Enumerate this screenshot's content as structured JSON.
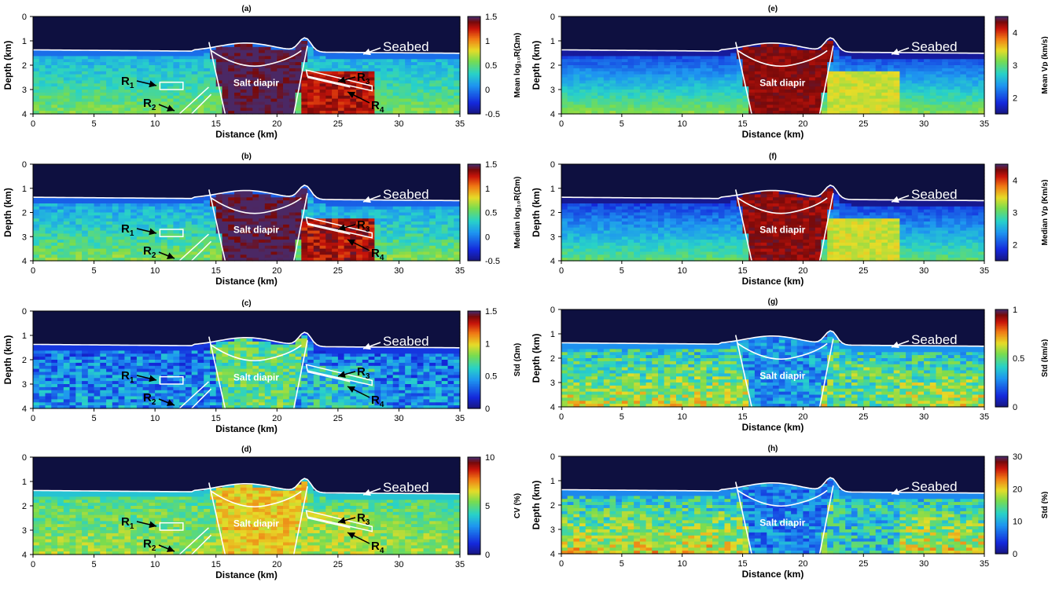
{
  "chart_data": [
    {
      "panel": "a",
      "type": "heatmap",
      "title": "(a)",
      "xlabel": "Distance (km)",
      "ylabel": "Depth (km)",
      "xlim": [
        0,
        35
      ],
      "ylim": [
        4,
        0
      ],
      "xticks": [
        "0",
        "5",
        "10",
        "15",
        "20",
        "25",
        "30",
        "35"
      ],
      "yticks": [
        "0",
        "1",
        "2",
        "3",
        "4"
      ],
      "colorbar": {
        "label": "Mean log₁₀R(Ωm)",
        "min": -0.5,
        "max": 1.5,
        "ticks": [
          "1.5",
          "1",
          "0.5",
          "0",
          "-0.5"
        ]
      },
      "annotations": {
        "seabed": "Seabed",
        "salt": "Salt diapir",
        "reservoirs": true
      },
      "field": {
        "base": 0.15,
        "deepGain": 0.45,
        "saltValue": 1.5,
        "flankValue": 1.3,
        "noise": 0.25
      }
    },
    {
      "panel": "b",
      "type": "heatmap",
      "title": "(b)",
      "xlabel": "Distance (km)",
      "ylabel": "Depth (km)",
      "xlim": [
        0,
        35
      ],
      "ylim": [
        4,
        0
      ],
      "xticks": [
        "0",
        "5",
        "10",
        "15",
        "20",
        "25",
        "30",
        "35"
      ],
      "yticks": [
        "0",
        "1",
        "2",
        "3",
        "4"
      ],
      "colorbar": {
        "label": "Median log₁₀R(Ωm)",
        "min": -0.5,
        "max": 1.5,
        "ticks": [
          "1.5",
          "1",
          "0.5",
          "0",
          "-0.5"
        ]
      },
      "annotations": {
        "seabed": "Seabed",
        "salt": "Salt diapir",
        "reservoirs": true
      },
      "field": {
        "base": 0.1,
        "deepGain": 0.5,
        "saltValue": 1.5,
        "flankValue": 1.3,
        "noise": 0.3
      }
    },
    {
      "panel": "c",
      "type": "heatmap",
      "title": "(c)",
      "xlabel": "Distance (km)",
      "ylabel": "Depth (km)",
      "xlim": [
        0,
        35
      ],
      "ylim": [
        4,
        0
      ],
      "xticks": [
        "0",
        "5",
        "10",
        "15",
        "20",
        "25",
        "30",
        "35"
      ],
      "yticks": [
        "0",
        "1",
        "2",
        "3",
        "4"
      ],
      "colorbar": {
        "label": "Std (Ωm)",
        "min": 0,
        "max": 1.5,
        "ticks": [
          "1.5",
          "1",
          "0.5",
          "0"
        ]
      },
      "annotations": {
        "seabed": "Seabed",
        "salt": "Salt diapir",
        "reservoirs": true
      },
      "field": {
        "base": 0.35,
        "deepGain": 0.1,
        "saltValue": 0.75,
        "flankValue": 0.6,
        "noise": 0.45
      }
    },
    {
      "panel": "d",
      "type": "heatmap",
      "title": "(d)",
      "xlabel": "Distance (km)",
      "ylabel": "",
      "xlim": [
        0,
        35
      ],
      "ylim": [
        4,
        0
      ],
      "xticks": [
        "0",
        "5",
        "10",
        "15",
        "20",
        "25",
        "30",
        "35"
      ],
      "yticks": [
        "0",
        "1",
        "2",
        "3",
        "4"
      ],
      "colorbar": {
        "label": "CV (%)",
        "min": 0,
        "max": 10,
        "ticks": [
          "10",
          "5",
          "0"
        ]
      },
      "annotations": {
        "seabed": "Seabed",
        "salt": "Salt diapir",
        "reservoirs": true
      },
      "field": {
        "base": 4.8,
        "deepGain": 1.0,
        "saltValue": 6.8,
        "flankValue": 6.0,
        "noise": 1.8
      }
    },
    {
      "panel": "e",
      "type": "heatmap",
      "title": "(e)",
      "xlabel": "Distance (km)",
      "ylabel": "Depth (km)",
      "xlim": [
        0,
        35
      ],
      "ylim": [
        4,
        0
      ],
      "xticks": [
        "0",
        "5",
        "10",
        "15",
        "20",
        "25",
        "30",
        "35"
      ],
      "yticks": [
        "0",
        "1",
        "2",
        "3",
        "4"
      ],
      "colorbar": {
        "label": "Mean Vp (km/s)",
        "min": 1.5,
        "max": 4.5,
        "ticks": [
          "4",
          "3",
          "2"
        ]
      },
      "annotations": {
        "seabed": "Seabed",
        "salt": "Salt diapir",
        "reservoirs": false
      },
      "field": {
        "base": 1.9,
        "deepGain": 1.3,
        "saltValue": 4.3,
        "flankValue": 3.4,
        "noise": 0.25
      }
    },
    {
      "panel": "f",
      "type": "heatmap",
      "title": "(f)",
      "xlabel": "Distance (km)",
      "ylabel": "Depth (km)",
      "xlim": [
        0,
        35
      ],
      "ylim": [
        4,
        0
      ],
      "xticks": [
        "0",
        "5",
        "10",
        "15",
        "20",
        "25",
        "30",
        "35"
      ],
      "yticks": [
        "0",
        "1",
        "2",
        "3",
        "4"
      ],
      "colorbar": {
        "label": "Median Vp (Km/s)",
        "min": 1.5,
        "max": 4.5,
        "ticks": [
          "4",
          "3",
          "2"
        ]
      },
      "annotations": {
        "seabed": "Seabed",
        "salt": "Salt diapir",
        "reservoirs": false
      },
      "field": {
        "base": 1.85,
        "deepGain": 1.2,
        "saltValue": 4.3,
        "flankValue": 3.4,
        "noise": 0.3
      }
    },
    {
      "panel": "g",
      "type": "heatmap",
      "title": "(g)",
      "xlabel": "Distance (km)",
      "ylabel": "Depth (km)",
      "xlim": [
        0,
        35
      ],
      "ylim": [
        4,
        0
      ],
      "xticks": [
        "0",
        "5",
        "10",
        "15",
        "20",
        "25",
        "30",
        "35"
      ],
      "yticks": [
        "0",
        "1",
        "2",
        "3",
        "4"
      ],
      "colorbar": {
        "label": "Std (km/s)",
        "min": 0,
        "max": 1,
        "ticks": [
          "1",
          "0.5",
          "0"
        ]
      },
      "annotations": {
        "seabed": "Seabed",
        "salt": "Salt diapir",
        "reservoirs": false
      },
      "field": {
        "base": 0.38,
        "deepGain": 0.25,
        "saltValue": 0.3,
        "flankValue": 0.5,
        "noise": 0.3
      }
    },
    {
      "panel": "h",
      "type": "heatmap",
      "title": "(h)",
      "xlabel": "Distance (km)",
      "ylabel": "Depth (km)",
      "xlim": [
        0,
        35
      ],
      "ylim": [
        4,
        0
      ],
      "xticks": [
        "0",
        "5",
        "10",
        "15",
        "20",
        "25",
        "30",
        "35"
      ],
      "yticks": [
        "0",
        "1",
        "2",
        "3",
        "4"
      ],
      "colorbar": {
        "label": "Std (%)",
        "min": 0,
        "max": 30,
        "ticks": [
          "30",
          "20",
          "10",
          "0"
        ]
      },
      "annotations": {
        "seabed": "Seabed",
        "salt": "Salt diapir",
        "reservoirs": false
      },
      "field": {
        "base": 11,
        "deepGain": 9,
        "saltValue": 8,
        "flankValue": 12,
        "noise": 9
      }
    }
  ],
  "labels": {
    "R1": "R",
    "R1sub": "1",
    "R2": "R",
    "R2sub": "2",
    "R3": "R",
    "R3sub": "3",
    "R4": "R",
    "R4sub": "4"
  }
}
